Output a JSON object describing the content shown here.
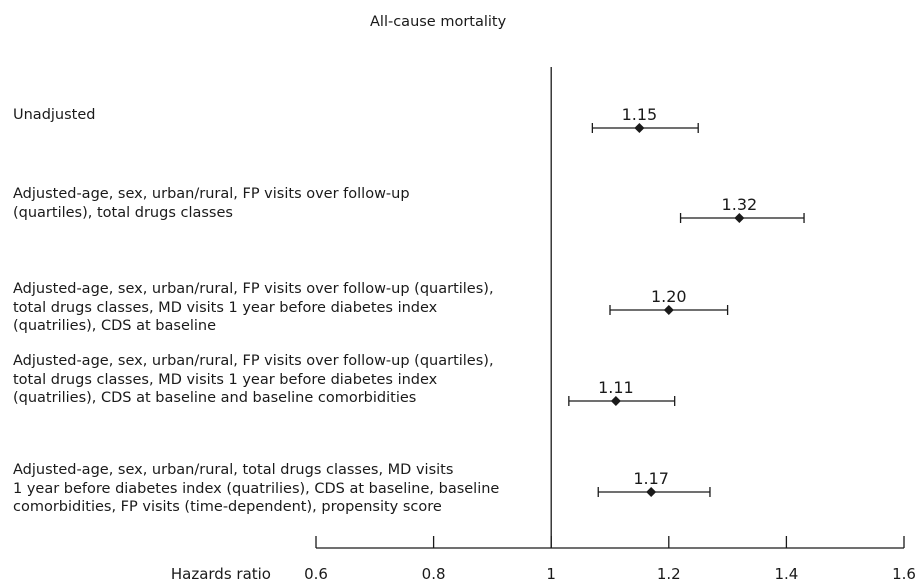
{
  "chart_data": {
    "type": "forest",
    "title": "All-cause mortality",
    "xlabel": "Hazards ratio",
    "xlim": [
      0.6,
      1.6
    ],
    "xticks": [
      "0.6",
      "0.8",
      "1",
      "1.2",
      "1.4",
      "1.6"
    ],
    "xtick_values": [
      0.6,
      0.8,
      1.0,
      1.2,
      1.4,
      1.6
    ],
    "reference_line": 1.0,
    "rows": [
      {
        "label_lines": [
          "Unadjusted"
        ],
        "estimate": 1.15,
        "estimate_label": "1.15",
        "ci_low": 1.07,
        "ci_high": 1.25
      },
      {
        "label_lines": [
          "Adjusted-age, sex, urban/rural,  FP visits over follow-up",
          "(quartiles), total drugs classes"
        ],
        "estimate": 1.32,
        "estimate_label": "1.32",
        "ci_low": 1.22,
        "ci_high": 1.43
      },
      {
        "label_lines": [
          "Adjusted-age, sex, urban/rural,  FP visits over follow-up (quartiles),",
          "total drugs classes, MD visits 1 year before diabetes index",
          "(quatrilies), CDS at baseline"
        ],
        "estimate": 1.2,
        "estimate_label": "1.20",
        "ci_low": 1.1,
        "ci_high": 1.3
      },
      {
        "label_lines": [
          "Adjusted-age, sex, urban/rural,  FP visits over follow-up (quartiles),",
          "total drugs classes, MD visits 1 year before diabetes index",
          "(quatrilies), CDS at baseline and baseline comorbidities"
        ],
        "estimate": 1.11,
        "estimate_label": "1.11",
        "ci_low": 1.03,
        "ci_high": 1.21
      },
      {
        "label_lines": [
          "Adjusted-age, sex, urban/rural,  total drugs classes, MD visits",
          "1 year before diabetes index (quatrilies), CDS at baseline, baseline",
          "comorbidities, FP visits (time-dependent), propensity score"
        ],
        "estimate": 1.17,
        "estimate_label": "1.17",
        "ci_low": 1.08,
        "ci_high": 1.27
      }
    ]
  }
}
